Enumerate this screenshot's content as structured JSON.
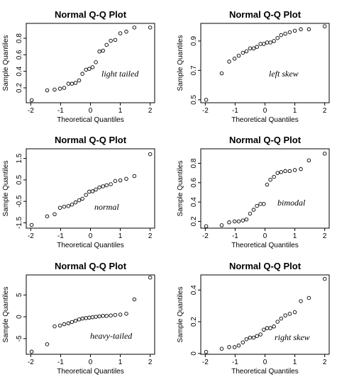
{
  "chart_data": [
    {
      "type": "scatter",
      "title": "Normal Q-Q Plot",
      "xlabel": "Theoretical Quantiles",
      "ylabel": "Sample Quantiles",
      "annotation": "light tailed",
      "xlim": [
        -2.15,
        2.15
      ],
      "ylim": [
        0.02,
        0.98
      ],
      "xticks": [
        -2,
        -1,
        0,
        1,
        2
      ],
      "yticks": [
        0.2,
        0.4,
        0.6,
        0.8
      ],
      "grid": false,
      "points": {
        "x": [
          -1.97,
          -1.45,
          -1.2,
          -1.02,
          -0.88,
          -0.74,
          -0.62,
          -0.5,
          -0.38,
          -0.27,
          -0.15,
          -0.04,
          0.07,
          0.18,
          0.3,
          0.42,
          0.54,
          0.68,
          0.83,
          1.0,
          1.2,
          1.47,
          2.0
        ],
        "y": [
          0.05,
          0.17,
          0.18,
          0.19,
          0.2,
          0.25,
          0.25,
          0.26,
          0.29,
          0.37,
          0.42,
          0.43,
          0.45,
          0.51,
          0.64,
          0.65,
          0.72,
          0.77,
          0.78,
          0.86,
          0.88,
          0.93,
          0.93
        ]
      }
    },
    {
      "type": "scatter",
      "title": "Normal Q-Q Plot",
      "xlabel": "Theoretical Quantiles",
      "ylabel": "Sample Quantiles",
      "annotation": "left skew",
      "xlim": [
        -2.15,
        2.15
      ],
      "ylim": [
        0.48,
        1.02
      ],
      "xticks": [
        -2,
        -1,
        0,
        1,
        2
      ],
      "yticks": [
        0.5,
        0.7,
        0.9
      ],
      "grid": false,
      "points": {
        "x": [
          -1.97,
          -1.45,
          -1.2,
          -1.02,
          -0.88,
          -0.74,
          -0.62,
          -0.5,
          -0.38,
          -0.27,
          -0.15,
          -0.04,
          0.07,
          0.18,
          0.3,
          0.42,
          0.54,
          0.68,
          0.83,
          1.0,
          1.2,
          1.47,
          2.0
        ],
        "y": [
          0.5,
          0.68,
          0.76,
          0.78,
          0.8,
          0.82,
          0.83,
          0.85,
          0.85,
          0.86,
          0.88,
          0.88,
          0.89,
          0.89,
          0.9,
          0.92,
          0.94,
          0.95,
          0.96,
          0.97,
          0.98,
          0.98,
          1.0
        ]
      }
    },
    {
      "type": "scatter",
      "title": "Normal Q-Q Plot",
      "xlabel": "Theoretical Quantiles",
      "ylabel": "Sample Quantiles",
      "annotation": "normal",
      "xlim": [
        -2.15,
        2.15
      ],
      "ylim": [
        -1.75,
        1.95
      ],
      "xticks": [
        -2,
        -1,
        0,
        1,
        2
      ],
      "yticks": [
        -1.5,
        -0.5,
        0.5,
        1.5
      ],
      "grid": false,
      "points": {
        "x": [
          -1.97,
          -1.45,
          -1.2,
          -1.02,
          -0.88,
          -0.74,
          -0.62,
          -0.5,
          -0.38,
          -0.27,
          -0.15,
          -0.04,
          0.07,
          0.18,
          0.3,
          0.42,
          0.54,
          0.68,
          0.83,
          1.0,
          1.2,
          1.47,
          2.0
        ],
        "y": [
          -1.6,
          -1.2,
          -1.1,
          -0.8,
          -0.75,
          -0.72,
          -0.65,
          -0.55,
          -0.45,
          -0.38,
          -0.2,
          -0.05,
          -0.03,
          0.05,
          0.15,
          0.2,
          0.25,
          0.3,
          0.45,
          0.48,
          0.55,
          0.68,
          1.7
        ]
      }
    },
    {
      "type": "scatter",
      "title": "Normal Q-Q Plot",
      "xlabel": "Theoretical Quantiles",
      "ylabel": "Sample Quantiles",
      "annotation": "bimodal",
      "xlim": [
        -2.15,
        2.15
      ],
      "ylim": [
        0.13,
        0.95
      ],
      "xticks": [
        -2,
        -1,
        0,
        1,
        2
      ],
      "yticks": [
        0.2,
        0.4,
        0.6,
        0.8
      ],
      "grid": false,
      "points": {
        "x": [
          -1.97,
          -1.45,
          -1.2,
          -1.02,
          -0.88,
          -0.74,
          -0.62,
          -0.5,
          -0.38,
          -0.27,
          -0.15,
          -0.04,
          0.07,
          0.18,
          0.3,
          0.42,
          0.54,
          0.68,
          0.83,
          1.0,
          1.2,
          1.47,
          2.0
        ],
        "y": [
          0.15,
          0.16,
          0.19,
          0.2,
          0.2,
          0.21,
          0.22,
          0.28,
          0.32,
          0.36,
          0.38,
          0.38,
          0.58,
          0.63,
          0.66,
          0.7,
          0.71,
          0.72,
          0.72,
          0.73,
          0.74,
          0.83,
          0.9
        ]
      }
    },
    {
      "type": "scatter",
      "title": "Normal Q-Q Plot",
      "xlabel": "Theoretical Quantiles",
      "ylabel": "Sample Quantiles",
      "annotation": "heavy-tailed",
      "xlim": [
        -2.15,
        2.15
      ],
      "ylim": [
        -8.6,
        9.6
      ],
      "xticks": [
        -2,
        -1,
        0,
        1,
        2
      ],
      "yticks": [
        -5,
        0,
        5
      ],
      "grid": false,
      "points": {
        "x": [
          -1.97,
          -1.45,
          -1.2,
          -1.02,
          -0.88,
          -0.74,
          -0.62,
          -0.5,
          -0.38,
          -0.27,
          -0.15,
          -0.04,
          0.07,
          0.18,
          0.3,
          0.42,
          0.54,
          0.68,
          0.83,
          1.0,
          1.2,
          1.47,
          2.0
        ],
        "y": [
          -8.0,
          -6.3,
          -2.2,
          -2.0,
          -1.7,
          -1.5,
          -1.2,
          -0.9,
          -0.6,
          -0.4,
          -0.3,
          -0.2,
          -0.1,
          0.0,
          0.1,
          0.2,
          0.2,
          0.3,
          0.4,
          0.5,
          0.7,
          4.0,
          9.0
        ]
      }
    },
    {
      "type": "scatter",
      "title": "Normal Q-Q Plot",
      "xlabel": "Theoretical Quantiles",
      "ylabel": "Sample Quantiles",
      "annotation": "right skew",
      "xlim": [
        -2.15,
        2.15
      ],
      "ylim": [
        -0.005,
        0.495
      ],
      "xticks": [
        -2,
        -1,
        0,
        1,
        2
      ],
      "yticks": [
        0.0,
        0.2,
        0.4
      ],
      "grid": false,
      "points": {
        "x": [
          -1.97,
          -1.45,
          -1.2,
          -1.02,
          -0.88,
          -0.74,
          -0.62,
          -0.5,
          -0.38,
          -0.27,
          -0.15,
          -0.04,
          0.07,
          0.18,
          0.3,
          0.42,
          0.54,
          0.68,
          0.83,
          1.0,
          1.2,
          1.47,
          2.0
        ],
        "y": [
          0.01,
          0.03,
          0.04,
          0.04,
          0.05,
          0.07,
          0.09,
          0.1,
          0.1,
          0.11,
          0.12,
          0.15,
          0.16,
          0.16,
          0.17,
          0.2,
          0.22,
          0.24,
          0.25,
          0.26,
          0.33,
          0.35,
          0.47
        ]
      }
    }
  ]
}
